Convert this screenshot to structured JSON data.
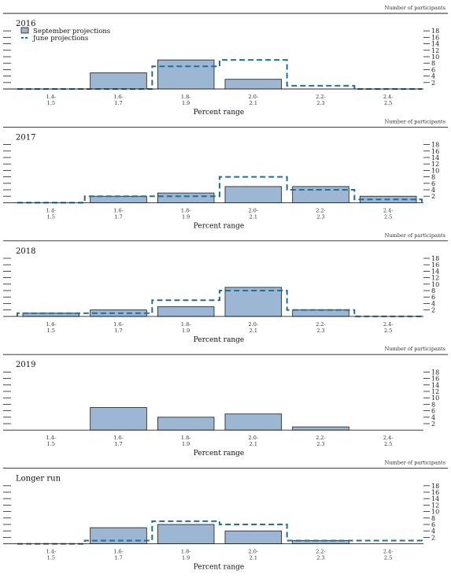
{
  "figure": {
    "unit_label": "Number of participants",
    "legend": {
      "september": "September projections",
      "june": "June projections"
    },
    "colors": {
      "september_fill": "#9bb7d4",
      "september_stroke": "#1a1a1a",
      "june_stroke": "#1f6e9c"
    }
  },
  "chart_data": [
    {
      "type": "bar",
      "title": "2016",
      "categories": [
        "1.4-\n1.5",
        "1.6-\n1.7",
        "1.8-\n1.9",
        "2.0-\n2.1",
        "2.2-\n2.3",
        "2.4-\n2.5"
      ],
      "series": [
        {
          "name": "September projections",
          "values": [
            0,
            5,
            9,
            3,
            0,
            0
          ]
        },
        {
          "name": "June projections",
          "values": [
            0,
            0,
            7,
            9,
            1,
            0
          ]
        }
      ],
      "xlabel": "Percent range",
      "ylabel": "Number of participants",
      "ylim": [
        0,
        20
      ],
      "yticks": [
        2,
        4,
        6,
        8,
        10,
        12,
        14,
        16,
        18
      ]
    },
    {
      "type": "bar",
      "title": "2017",
      "categories": [
        "1.4-\n1.5",
        "1.6-\n1.7",
        "1.8-\n1.9",
        "2.0-\n2.1",
        "2.2-\n2.3",
        "2.4-\n2.5"
      ],
      "series": [
        {
          "name": "September projections",
          "values": [
            0,
            2,
            3,
            5,
            5,
            2
          ]
        },
        {
          "name": "June projections",
          "values": [
            0,
            2,
            2,
            8,
            4,
            1
          ]
        }
      ],
      "xlabel": "Percent range",
      "ylabel": "Number of participants",
      "ylim": [
        0,
        20
      ],
      "yticks": [
        2,
        4,
        6,
        8,
        10,
        12,
        14,
        16,
        18
      ]
    },
    {
      "type": "bar",
      "title": "2018",
      "categories": [
        "1.4-\n1.5",
        "1.6-\n1.7",
        "1.8-\n1.9",
        "2.0-\n2.1",
        "2.2-\n2.3",
        "2.4-\n2.5"
      ],
      "series": [
        {
          "name": "September projections",
          "values": [
            1,
            2,
            3,
            9,
            2,
            0
          ]
        },
        {
          "name": "June projections",
          "values": [
            1,
            1,
            5,
            8,
            2,
            0
          ]
        }
      ],
      "xlabel": "Percent range",
      "ylabel": "Number of participants",
      "ylim": [
        0,
        20
      ],
      "yticks": [
        2,
        4,
        6,
        8,
        10,
        12,
        14,
        16,
        18
      ]
    },
    {
      "type": "bar",
      "title": "2019",
      "categories": [
        "1.4-\n1.5",
        "1.6-\n1.7",
        "1.8-\n1.9",
        "2.0-\n2.1",
        "2.2-\n2.3",
        "2.4-\n2.5"
      ],
      "series": [
        {
          "name": "September projections",
          "values": [
            0,
            7,
            4,
            5,
            1,
            0
          ]
        }
      ],
      "xlabel": "Percent range",
      "ylabel": "Number of participants",
      "ylim": [
        0,
        20
      ],
      "yticks": [
        2,
        4,
        6,
        8,
        10,
        12,
        14,
        16,
        18
      ]
    },
    {
      "type": "bar",
      "title": "Longer run",
      "categories": [
        "1.4-\n1.5",
        "1.6-\n1.7",
        "1.8-\n1.9",
        "2.0-\n2.1",
        "2.2-\n2.3",
        "2.4-\n2.5"
      ],
      "series": [
        {
          "name": "September projections",
          "values": [
            0,
            5,
            6,
            4,
            1,
            0
          ]
        },
        {
          "name": "June projections",
          "values": [
            0,
            1,
            7,
            6,
            1,
            1
          ]
        }
      ],
      "xlabel": "Percent range",
      "ylabel": "Number of participants",
      "ylim": [
        0,
        20
      ],
      "yticks": [
        2,
        4,
        6,
        8,
        10,
        12,
        14,
        16,
        18
      ]
    }
  ]
}
